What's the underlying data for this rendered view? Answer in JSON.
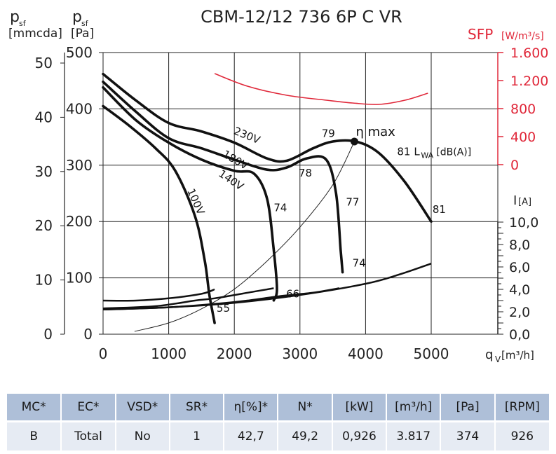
{
  "chart_data": {
    "type": "line",
    "title": "CBM-12/12 736 6P C VR",
    "x_axis": {
      "label": "q",
      "label_sub": "V",
      "unit": "[m³/h]",
      "range": [
        0,
        5000
      ],
      "ticks": [
        0,
        1000,
        2000,
        3000,
        4000,
        5000
      ]
    },
    "y_axis_pa": {
      "label": "p",
      "label_sub": "sf",
      "unit": "[Pa]",
      "range": [
        0,
        500
      ],
      "ticks": [
        0,
        100,
        200,
        300,
        400,
        500
      ]
    },
    "y_axis_mmcda": {
      "label": "p",
      "label_sub": "sf",
      "unit": "[mmcda]",
      "ticks": [
        0,
        10,
        20,
        30,
        40,
        50
      ]
    },
    "sfp_axis": {
      "label": "SFP",
      "unit": "[W/m³/s]",
      "color": "#e0283a",
      "ticks": [
        "0",
        "400",
        "800",
        "1.200",
        "1.600"
      ],
      "tick_values": [
        0,
        400,
        800,
        1200,
        1600
      ]
    },
    "current_axis": {
      "label": "I",
      "unit": "[A]",
      "ticks": [
        "0,0",
        "2,0",
        "4,0",
        "6,0",
        "8,0",
        "10,0"
      ],
      "tick_values": [
        0,
        2,
        4,
        6,
        8,
        10
      ]
    },
    "grid": true,
    "pressure_curves": [
      {
        "name": "230V",
        "points": [
          [
            0,
            462
          ],
          [
            500,
            415
          ],
          [
            1000,
            375
          ],
          [
            1500,
            360
          ],
          [
            2000,
            340
          ],
          [
            2500,
            312
          ],
          [
            2800,
            308
          ],
          [
            3200,
            330
          ],
          [
            3500,
            342
          ],
          [
            3850,
            342
          ],
          [
            4200,
            322
          ],
          [
            4600,
            270
          ],
          [
            5000,
            200
          ]
        ]
      },
      {
        "name": "180V",
        "points": [
          [
            0,
            448
          ],
          [
            500,
            395
          ],
          [
            1000,
            348
          ],
          [
            1500,
            330
          ],
          [
            2000,
            310
          ],
          [
            2500,
            292
          ],
          [
            2800,
            296
          ],
          [
            3100,
            312
          ],
          [
            3400,
            310
          ],
          [
            3550,
            250
          ],
          [
            3620,
            150
          ],
          [
            3650,
            110
          ]
        ]
      },
      {
        "name": "140V",
        "points": [
          [
            0,
            438
          ],
          [
            500,
            380
          ],
          [
            1000,
            340
          ],
          [
            1500,
            310
          ],
          [
            2000,
            290
          ],
          [
            2300,
            285
          ],
          [
            2500,
            240
          ],
          [
            2600,
            150
          ],
          [
            2650,
            80
          ],
          [
            2600,
            60
          ]
        ]
      },
      {
        "name": "100V",
        "points": [
          [
            0,
            405
          ],
          [
            400,
            370
          ],
          [
            800,
            330
          ],
          [
            1100,
            290
          ],
          [
            1400,
            210
          ],
          [
            1550,
            130
          ],
          [
            1620,
            70
          ],
          [
            1700,
            20
          ]
        ]
      }
    ],
    "efficiency_line": {
      "points": [
        [
          480,
          5
        ],
        [
          1000,
          20
        ],
        [
          1500,
          45
        ],
        [
          2000,
          80
        ],
        [
          2500,
          130
        ],
        [
          3000,
          190
        ],
        [
          3500,
          265
        ],
        [
          3830,
          342
        ]
      ]
    },
    "eta_max_point": {
      "x": 3830,
      "y": 342,
      "label": "η max"
    },
    "sfp_curve": {
      "points": [
        [
          1700,
          1300
        ],
        [
          2200,
          1120
        ],
        [
          2800,
          990
        ],
        [
          3400,
          920
        ],
        [
          3800,
          880
        ],
        [
          4200,
          860
        ],
        [
          4600,
          920
        ],
        [
          4950,
          1020
        ]
      ]
    },
    "current_curves": [
      {
        "points": [
          [
            0,
            3.0
          ],
          [
            500,
            3.0
          ],
          [
            1000,
            3.2
          ],
          [
            1500,
            3.6
          ],
          [
            1700,
            4.0
          ]
        ]
      },
      {
        "points": [
          [
            0,
            2.3
          ],
          [
            800,
            2.5
          ],
          [
            1400,
            3.0
          ],
          [
            1700,
            3.2
          ],
          [
            2300,
            3.8
          ],
          [
            2600,
            4.1
          ]
        ]
      },
      {
        "points": [
          [
            0,
            2.2
          ],
          [
            1000,
            2.4
          ],
          [
            1700,
            2.7
          ],
          [
            2200,
            3.0
          ],
          [
            2700,
            3.4
          ],
          [
            3200,
            3.7
          ],
          [
            3600,
            4.1
          ]
        ]
      },
      {
        "points": [
          [
            0,
            2.2
          ],
          [
            1000,
            2.4
          ],
          [
            2000,
            2.8
          ],
          [
            3000,
            3.5
          ],
          [
            4000,
            4.5
          ],
          [
            4500,
            5.3
          ],
          [
            5000,
            6.3
          ]
        ]
      }
    ],
    "annotations": [
      {
        "text": "230V",
        "x": 1980,
        "y": 356,
        "rot": 22
      },
      {
        "text": "180V",
        "x": 1810,
        "y": 316,
        "rot": 30
      },
      {
        "text": "140V",
        "x": 1750,
        "y": 282,
        "rot": 34
      },
      {
        "text": "100V",
        "x": 1280,
        "y": 255,
        "rot": 66
      },
      {
        "text": "79",
        "x": 3330,
        "y": 350,
        "rot": 0
      },
      {
        "text": "81",
        "x": 4480,
        "y": 318,
        "rot": 0
      },
      {
        "text": "78",
        "x": 2980,
        "y": 280,
        "rot": 0
      },
      {
        "text": "77",
        "x": 3700,
        "y": 228,
        "rot": 0
      },
      {
        "text": "74",
        "x": 2600,
        "y": 218,
        "rot": 0
      },
      {
        "text": "74",
        "x": 3800,
        "y": 120,
        "rot": 0
      },
      {
        "text": "81",
        "x": 5020,
        "y": 215,
        "rot": 0
      },
      {
        "text": "66",
        "x": 2790,
        "y": 65,
        "rot": 0
      },
      {
        "text": "55",
        "x": 1730,
        "y": 40,
        "rot": 0
      }
    ],
    "lwa_label": {
      "main": "L",
      "sub": "WA",
      "unit": "[dB(A)]"
    }
  },
  "table": {
    "headers": [
      "MC*",
      "EC*",
      "VSD*",
      "SR*",
      "η[%]*",
      "N*",
      "[kW]",
      "[m³/h]",
      "[Pa]",
      "[RPM]"
    ],
    "values": [
      "B",
      "Total",
      "No",
      "1",
      "42,7",
      "49,2",
      "0,926",
      "3.817",
      "374",
      "926"
    ]
  }
}
